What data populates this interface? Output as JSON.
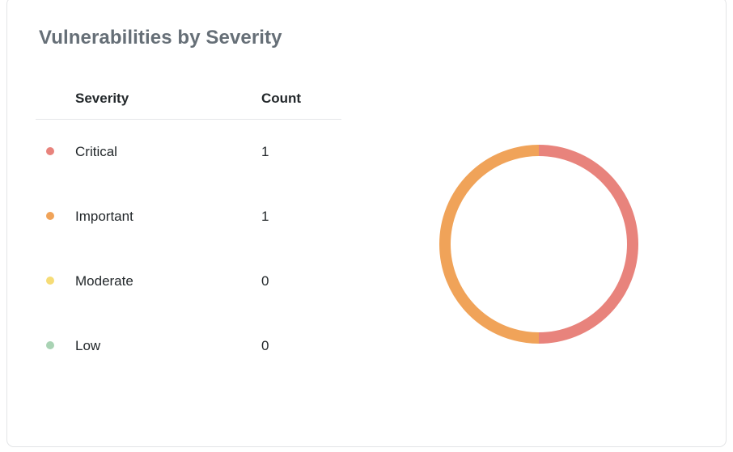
{
  "card": {
    "title": "Vulnerabilities by Severity"
  },
  "table": {
    "headers": {
      "severity": "Severity",
      "count": "Count"
    },
    "rows": [
      {
        "label": "Critical",
        "count": "1",
        "color": "#E8837C"
      },
      {
        "label": "Important",
        "count": "1",
        "color": "#F0A359"
      },
      {
        "label": "Moderate",
        "count": "0",
        "color": "#F6DC76"
      },
      {
        "label": "Low",
        "count": "0",
        "color": "#A9D3B4"
      }
    ]
  },
  "chart_data": {
    "type": "pie",
    "donut": true,
    "title": "Vulnerabilities by Severity",
    "categories": [
      "Critical",
      "Important",
      "Moderate",
      "Low"
    ],
    "values": [
      1,
      1,
      0,
      0
    ],
    "colors": [
      "#E8837C",
      "#F0A359",
      "#F6DC76",
      "#A9D3B4"
    ],
    "legend_position": "left",
    "ring_thickness_px": 14,
    "start_angle_deg": 0,
    "direction": "clockwise"
  }
}
